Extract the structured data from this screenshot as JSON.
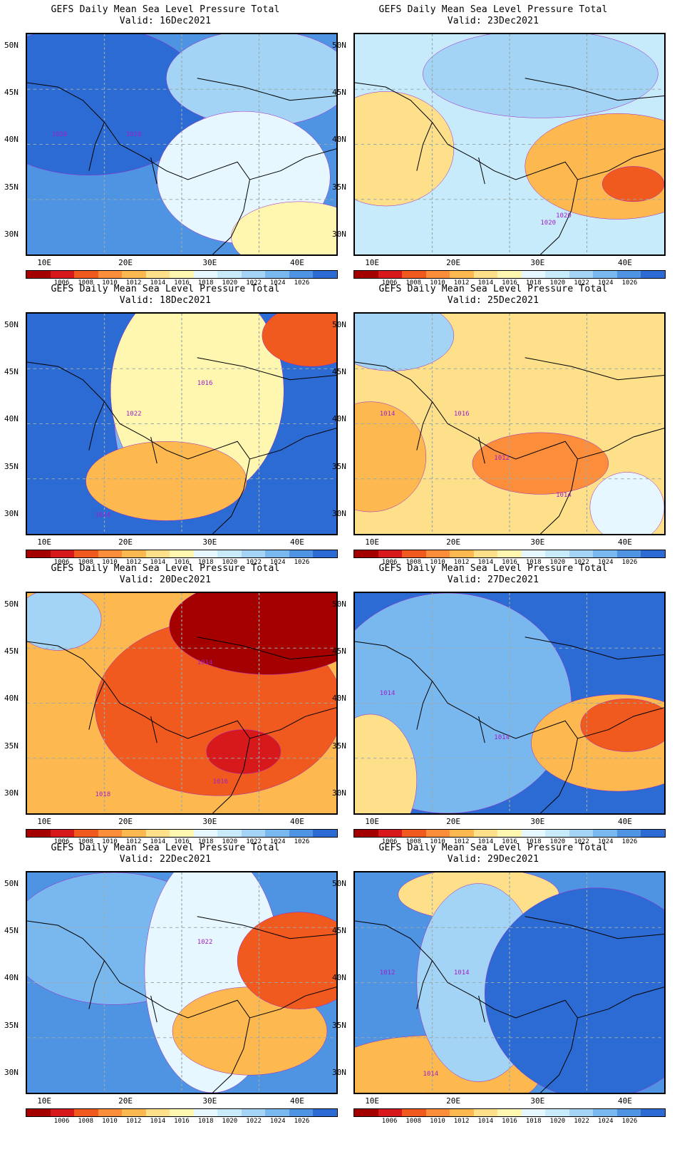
{
  "colorbar": {
    "labels": [
      "1006",
      "1008",
      "1010",
      "1012",
      "1014",
      "1016",
      "1018",
      "1020",
      "1022",
      "1024",
      "1026"
    ],
    "colors": [
      "#a50000",
      "#d7191c",
      "#f05a1e",
      "#fc8d3a",
      "#fdb94f",
      "#fee08b",
      "#fff6b0",
      "#e6f7ff",
      "#c7ebfb",
      "#a3d4f5",
      "#79b8ef",
      "#4f93e3",
      "#2c6bd3"
    ]
  },
  "axes": {
    "x_ticks": [
      "10E",
      "20E",
      "30E",
      "40E"
    ],
    "y_ticks": [
      "50N",
      "45N",
      "40N",
      "35N",
      "30N"
    ]
  },
  "panels": [
    {
      "title": "GEFS Daily Mean Sea Level Pressure Total",
      "valid": "Valid: 16Dec2021",
      "bg": "#4f93e3",
      "blobs": [
        {
          "c": "#2c6bd3"
        },
        {
          "c": "#a3d4f5"
        },
        {
          "c": "#e6f7ff"
        },
        {
          "c": "#fff6b0"
        }
      ],
      "contour_labels": [
        "1026",
        "1018"
      ]
    },
    {
      "title": "GEFS Daily Mean Sea Level Pressure Total",
      "valid": "Valid: 23Dec2021",
      "bg": "#c7ebfb",
      "blobs": [
        {
          "c": "#fee08b"
        },
        {
          "c": "#fdb94f"
        },
        {
          "c": "#f05a1e"
        },
        {
          "c": "#a3d4f5"
        }
      ],
      "contour_labels": [
        "1020",
        "1020"
      ]
    },
    {
      "title": "GEFS Daily Mean Sea Level Pressure Total",
      "valid": "Valid: 18Dec2021",
      "bg": "#2c6bd3",
      "blobs": [
        {
          "c": "#79b8ef"
        },
        {
          "c": "#fff6b0"
        },
        {
          "c": "#fdb94f"
        },
        {
          "c": "#f05a1e"
        }
      ],
      "contour_labels": [
        "1022",
        "1014",
        "1016"
      ]
    },
    {
      "title": "GEFS Daily Mean Sea Level Pressure Total",
      "valid": "Valid: 25Dec2021",
      "bg": "#fee08b",
      "blobs": [
        {
          "c": "#a3d4f5"
        },
        {
          "c": "#fdb94f"
        },
        {
          "c": "#fc8d3a"
        },
        {
          "c": "#e6f7ff"
        }
      ],
      "contour_labels": [
        "1014",
        "1012",
        "1014",
        "1016"
      ]
    },
    {
      "title": "GEFS Daily Mean Sea Level Pressure Total",
      "valid": "Valid: 20Dec2021",
      "bg": "#fdb94f",
      "blobs": [
        {
          "c": "#a3d4f5"
        },
        {
          "c": "#f05a1e"
        },
        {
          "c": "#a50000"
        },
        {
          "c": "#d7191c"
        }
      ],
      "contour_labels": [
        "1018",
        "1014",
        "1016"
      ]
    },
    {
      "title": "GEFS Daily Mean Sea Level Pressure Total",
      "valid": "Valid: 27Dec2021",
      "bg": "#2c6bd3",
      "blobs": [
        {
          "c": "#79b8ef"
        },
        {
          "c": "#fdb94f"
        },
        {
          "c": "#f05a1e"
        },
        {
          "c": "#fee08b"
        }
      ],
      "contour_labels": [
        "1014",
        "1014"
      ]
    },
    {
      "title": "GEFS Daily Mean Sea Level Pressure Total",
      "valid": "Valid: 22Dec2021",
      "bg": "#4f93e3",
      "blobs": [
        {
          "c": "#79b8ef"
        },
        {
          "c": "#e6f7ff"
        },
        {
          "c": "#fdb94f"
        },
        {
          "c": "#f05a1e"
        }
      ],
      "contour_labels": [
        "1022"
      ]
    },
    {
      "title": "GEFS Daily Mean Sea Level Pressure Total",
      "valid": "Valid: 29Dec2021",
      "bg": "#4f93e3",
      "blobs": [
        {
          "c": "#fdb94f"
        },
        {
          "c": "#fee08b"
        },
        {
          "c": "#a3d4f5"
        },
        {
          "c": "#2c6bd3"
        }
      ],
      "contour_labels": [
        "1012",
        "1014",
        "1014"
      ]
    }
  ]
}
